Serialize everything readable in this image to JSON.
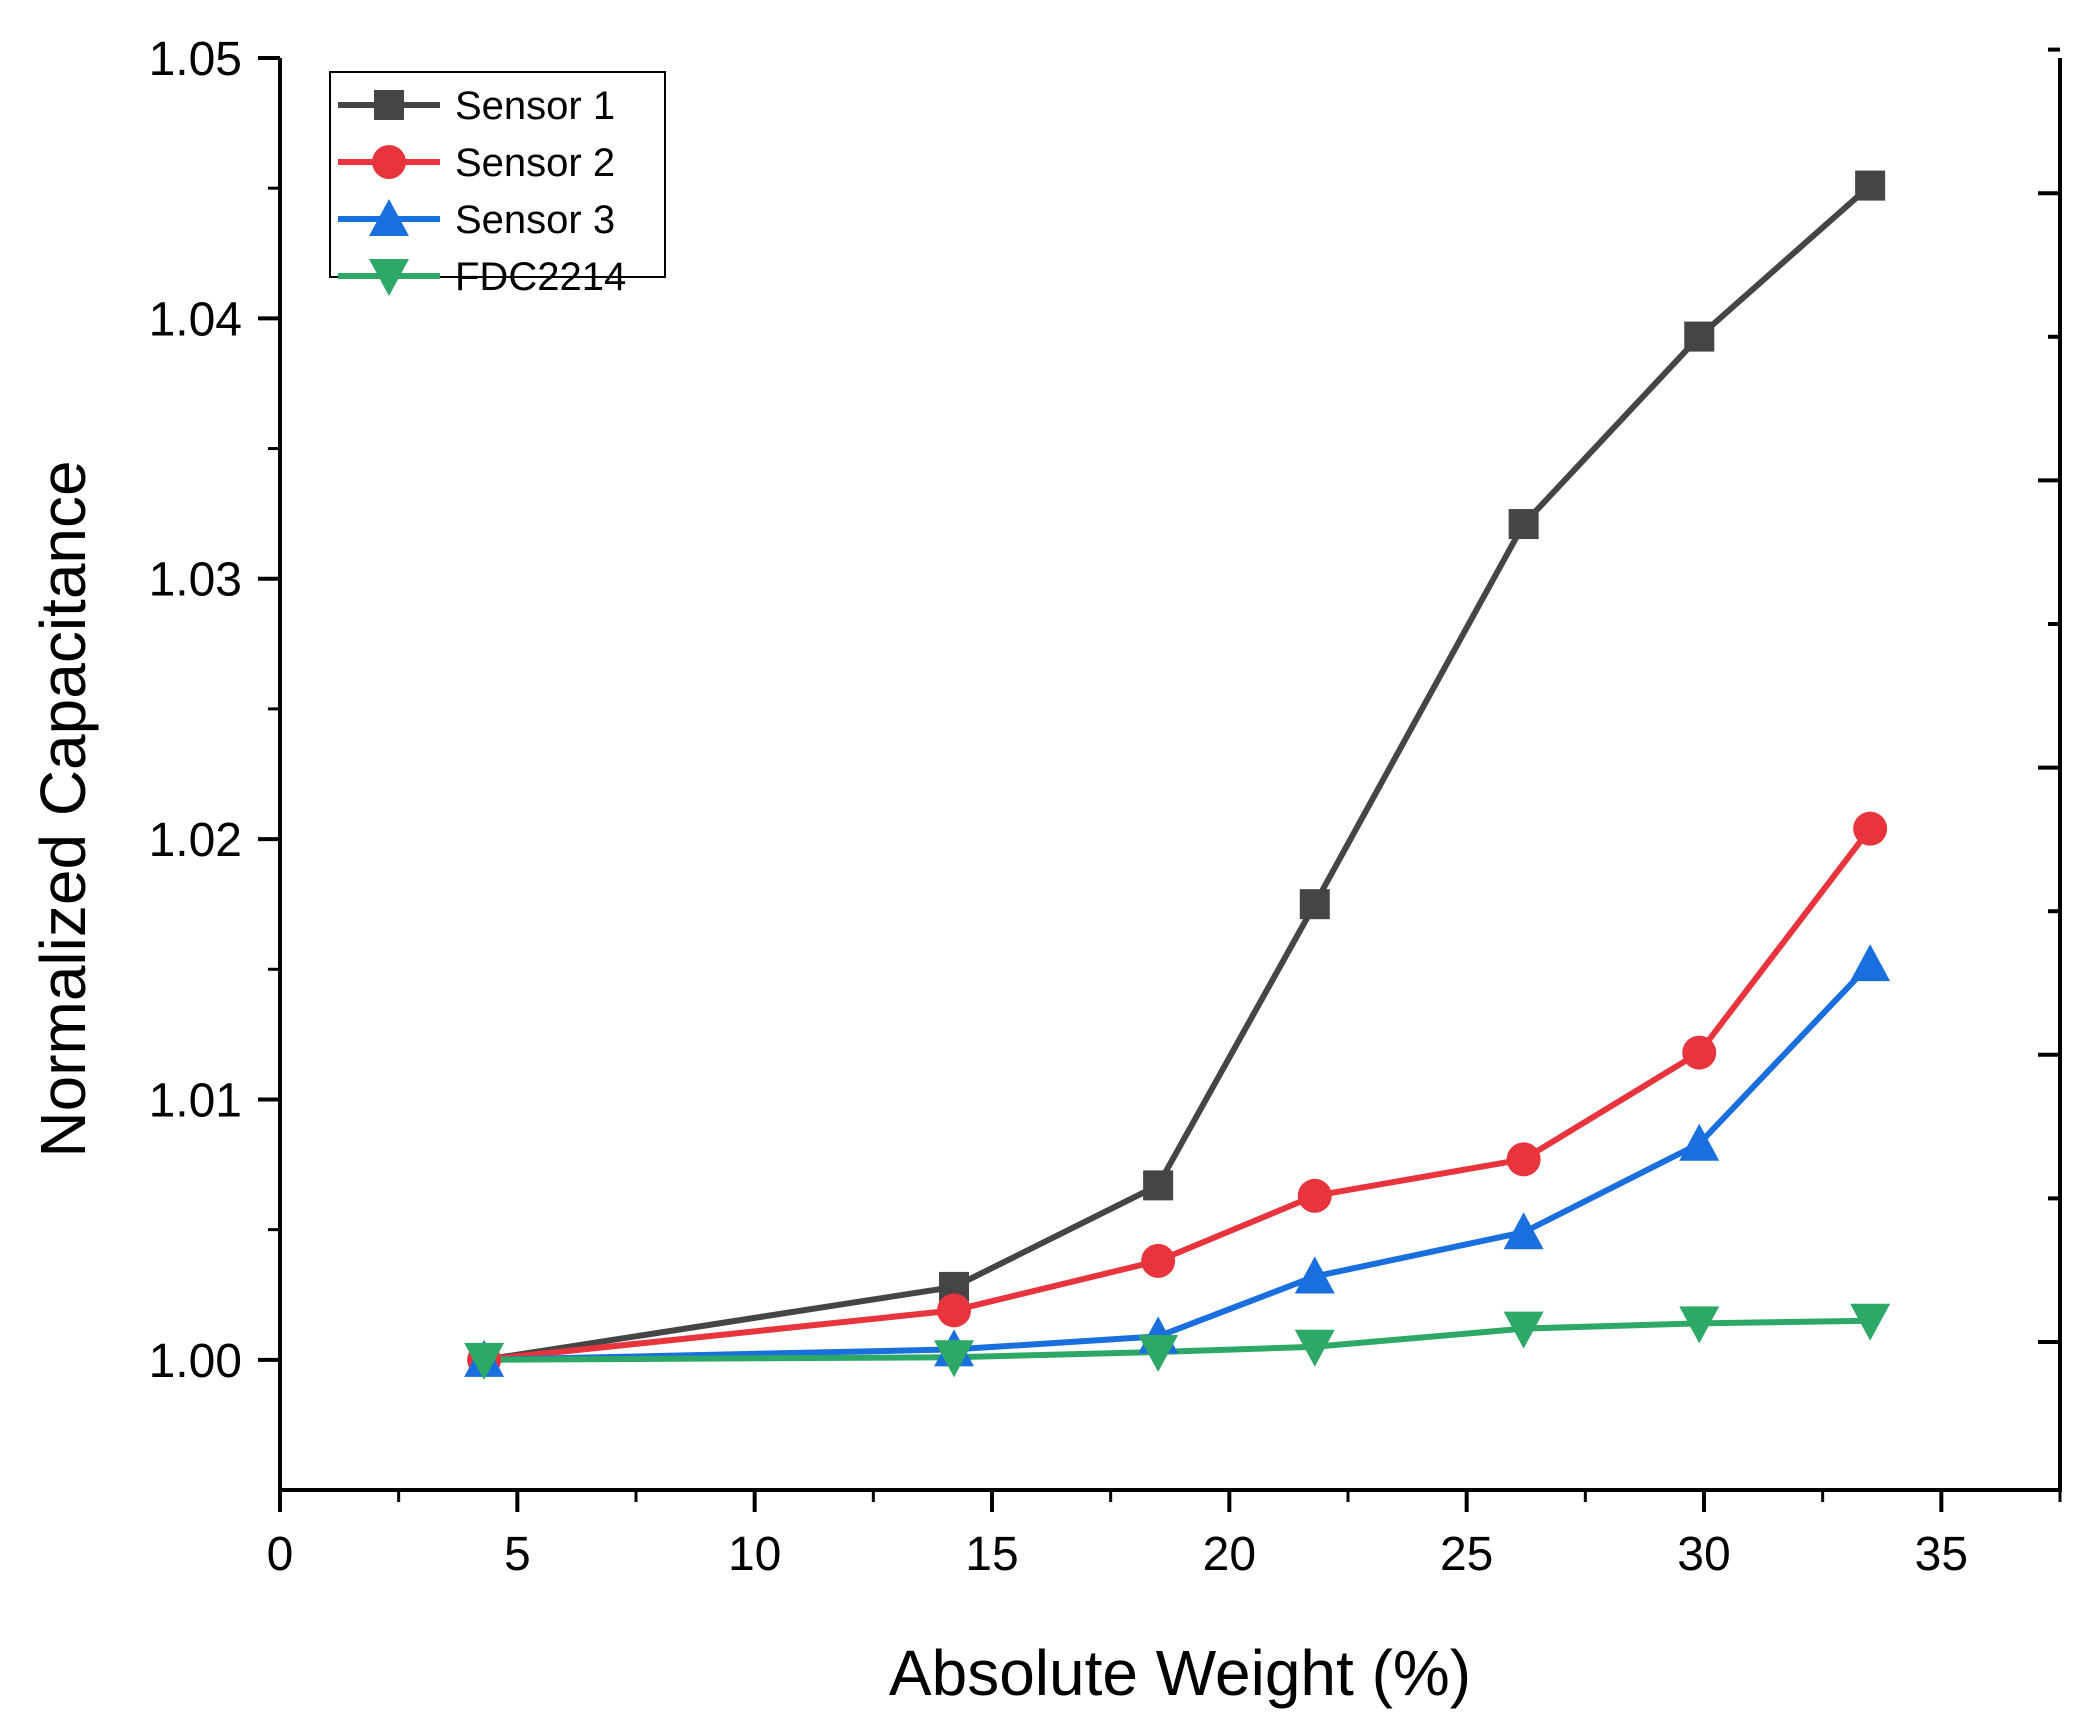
{
  "chart_data": {
    "type": "line",
    "title": "",
    "xlabel": "Absolute Weight (%)",
    "ylabel": "Normalized Capacitance",
    "xlim": [
      0,
      37.5
    ],
    "ylim": [
      0.995,
      1.05
    ],
    "xticks": [
      0,
      5,
      10,
      15,
      20,
      25,
      30,
      35
    ],
    "xtick_labels": [
      "0",
      "5",
      "10",
      "15",
      "20",
      "25",
      "30",
      "35"
    ],
    "yticks": [
      1.0,
      1.01,
      1.02,
      1.03,
      1.04,
      1.05
    ],
    "ytick_labels": [
      "1.00",
      "1.01",
      "1.02",
      "1.03",
      "1.04",
      "1.05"
    ],
    "grid": false,
    "legend_position": "top-left",
    "x": [
      4.3,
      14.2,
      18.5,
      21.8,
      26.2,
      29.9,
      33.5
    ],
    "series": [
      {
        "name": "Sensor 1",
        "color": "#454545",
        "marker": "square",
        "values": [
          1.0,
          1.0028,
          1.0067,
          1.0175,
          1.0321,
          1.0393,
          1.0451
        ]
      },
      {
        "name": "Sensor 2",
        "color": "#e8353d",
        "marker": "circle",
        "values": [
          1.0,
          1.0019,
          1.0038,
          1.0063,
          1.0077,
          1.0118,
          1.0204
        ]
      },
      {
        "name": "Sensor 3",
        "color": "#1a6fde",
        "marker": "triangle-up",
        "values": [
          1.0,
          1.0004,
          1.0009,
          1.0032,
          1.0049,
          1.0083,
          1.0152
        ]
      },
      {
        "name": "FDC2214",
        "color": "#2ea866",
        "marker": "triangle-down",
        "values": [
          1.0,
          1.0001,
          1.0003,
          1.0005,
          1.0012,
          1.0014,
          1.0015
        ]
      }
    ]
  }
}
